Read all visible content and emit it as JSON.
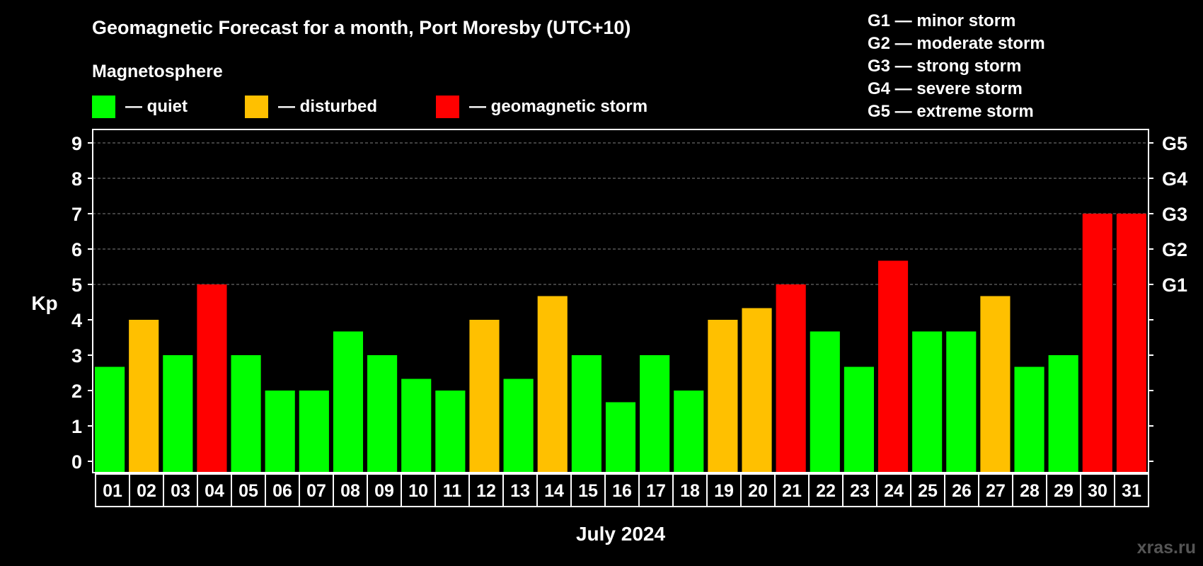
{
  "chart_data": {
    "type": "bar",
    "title": "Geomagnetic Forecast for a month, Port Moresby (UTC+10)",
    "subtitle": "Magnetosphere",
    "legend": [
      {
        "label": "— quiet",
        "color": "#00ff00"
      },
      {
        "label": "— disturbed",
        "color": "#ffc000"
      },
      {
        "label": "— geomagnetic storm",
        "color": "#ff0000"
      }
    ],
    "storm_levels": [
      "G1 — minor storm",
      "G2 — moderate storm",
      "G3 — strong storm",
      "G4 — severe storm",
      "G5 — extreme storm"
    ],
    "ylabel": "Kp",
    "xlabel": "July 2024",
    "ylim": [
      0,
      9
    ],
    "yticks": [
      "0",
      "1",
      "2",
      "3",
      "4",
      "5",
      "6",
      "7",
      "8",
      "9"
    ],
    "right_axis_labels": [
      {
        "kp": 5,
        "label": "G1"
      },
      {
        "kp": 6,
        "label": "G2"
      },
      {
        "kp": 7,
        "label": "G3"
      },
      {
        "kp": 8,
        "label": "G4"
      },
      {
        "kp": 9,
        "label": "G5"
      }
    ],
    "categories": [
      "01",
      "02",
      "03",
      "04",
      "05",
      "06",
      "07",
      "08",
      "09",
      "10",
      "11",
      "12",
      "13",
      "14",
      "15",
      "16",
      "17",
      "18",
      "19",
      "20",
      "21",
      "22",
      "23",
      "24",
      "25",
      "26",
      "27",
      "28",
      "29",
      "30",
      "31"
    ],
    "values": [
      2.67,
      4,
      3,
      5,
      3,
      2,
      2,
      3.67,
      3,
      2.33,
      2,
      4,
      2.33,
      4.67,
      3,
      1.67,
      3,
      2,
      4,
      4.33,
      5,
      3.67,
      2.67,
      5.67,
      3.67,
      3.67,
      4.67,
      2.67,
      3,
      7,
      7
    ],
    "status": [
      "quiet",
      "disturbed",
      "quiet",
      "storm",
      "quiet",
      "quiet",
      "quiet",
      "quiet",
      "quiet",
      "quiet",
      "quiet",
      "disturbed",
      "quiet",
      "disturbed",
      "quiet",
      "quiet",
      "quiet",
      "quiet",
      "disturbed",
      "disturbed",
      "storm",
      "quiet",
      "quiet",
      "storm",
      "quiet",
      "quiet",
      "disturbed",
      "quiet",
      "quiet",
      "storm",
      "storm"
    ],
    "status_colors": {
      "quiet": "#00ff00",
      "disturbed": "#ffc000",
      "storm": "#ff0000"
    },
    "grid_color": "#808080",
    "axis_color": "#ffffff"
  },
  "watermark": "xras.ru"
}
